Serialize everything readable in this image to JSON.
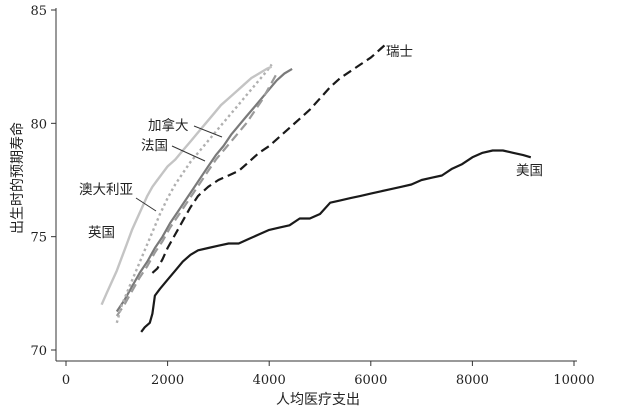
{
  "chart_data": {
    "type": "line",
    "title": "",
    "xlabel": "人均医疗支出",
    "ylabel": "出生时的预期寿命",
    "xlim": [
      0,
      10000
    ],
    "ylim": [
      70,
      85
    ],
    "xticks": [
      0,
      2000,
      4000,
      6000,
      8000,
      10000
    ],
    "yticks": [
      70,
      75,
      80,
      85
    ],
    "xtick_labels": [
      "0",
      "2000",
      "4000",
      "6000",
      "8000",
      "10000"
    ],
    "ytick_labels": [
      "70",
      "75",
      "80",
      "85"
    ],
    "grid": false,
    "legend": "none",
    "series": [
      {
        "name": "美国",
        "color": "#1a1a1a",
        "dash": "solid",
        "x": [
          1480,
          1550,
          1650,
          1700,
          1750,
          1850,
          2000,
          2150,
          2300,
          2450,
          2600,
          2800,
          3000,
          3200,
          3400,
          3600,
          3800,
          4000,
          4200,
          4400,
          4600,
          4800,
          5000,
          5200,
          5400,
          5600,
          5800,
          6000,
          6200,
          6400,
          6600,
          6800,
          7000,
          7200,
          7400,
          7600,
          7800,
          8000,
          8200,
          8400,
          8600,
          8800,
          9000,
          9150
        ],
        "y": [
          70.8,
          71.0,
          71.2,
          71.6,
          72.4,
          72.7,
          73.1,
          73.5,
          73.9,
          74.2,
          74.4,
          74.5,
          74.6,
          74.7,
          74.7,
          74.9,
          75.1,
          75.3,
          75.4,
          75.5,
          75.8,
          75.8,
          76.0,
          76.5,
          76.6,
          76.7,
          76.8,
          76.9,
          77.0,
          77.1,
          77.2,
          77.3,
          77.5,
          77.6,
          77.7,
          78.0,
          78.2,
          78.5,
          78.7,
          78.8,
          78.8,
          78.7,
          78.6,
          78.5
        ]
      },
      {
        "name": "瑞士",
        "color": "#1a1a1a",
        "dash": "long",
        "x": [
          1700,
          1800,
          1900,
          2000,
          2150,
          2300,
          2450,
          2600,
          2800,
          3000,
          3200,
          3400,
          3600,
          3800,
          4000,
          4200,
          4400,
          4600,
          4800,
          5000,
          5200,
          5400,
          5600,
          5800,
          6000,
          6100,
          6200,
          6300
        ],
        "y": [
          73.4,
          73.6,
          74.0,
          74.5,
          75.1,
          75.7,
          76.3,
          76.8,
          77.2,
          77.5,
          77.7,
          77.9,
          78.3,
          78.7,
          79.0,
          79.4,
          79.8,
          80.2,
          80.6,
          81.1,
          81.6,
          82.0,
          82.3,
          82.6,
          82.9,
          83.1,
          83.3,
          83.5
        ]
      },
      {
        "name": "加拿大",
        "color": "#7a7a7a",
        "dash": "solid",
        "x": [
          1000,
          1150,
          1300,
          1450,
          1600,
          1750,
          1900,
          2050,
          2200,
          2350,
          2500,
          2650,
          2800,
          2950,
          3100,
          3250,
          3400,
          3550,
          3700,
          3850,
          4000,
          4150,
          4300,
          4450
        ],
        "y": [
          71.7,
          72.2,
          72.8,
          73.4,
          73.9,
          74.5,
          75.0,
          75.6,
          76.1,
          76.6,
          77.1,
          77.6,
          78.1,
          78.6,
          79.0,
          79.5,
          79.9,
          80.3,
          80.7,
          81.1,
          81.5,
          81.9,
          82.2,
          82.4
        ]
      },
      {
        "name": "法国",
        "color": "#9a9a9a",
        "dash": "long",
        "x": [
          1000,
          1150,
          1300,
          1450,
          1600,
          1750,
          1900,
          2050,
          2200,
          2350,
          2500,
          2650,
          2800,
          2950,
          3100,
          3250,
          3400,
          3550,
          3700,
          3850,
          4000,
          4150
        ],
        "y": [
          71.5,
          72.0,
          72.6,
          73.2,
          73.7,
          74.3,
          74.8,
          75.4,
          75.9,
          76.4,
          76.9,
          77.4,
          77.9,
          78.4,
          78.8,
          79.2,
          79.6,
          80.0,
          80.5,
          81.0,
          81.6,
          82.2
        ]
      },
      {
        "name": "澳大利亚",
        "color": "#b0b0b0",
        "dash": "dot",
        "x": [
          1000,
          1100,
          1250,
          1400,
          1550,
          1700,
          1850,
          2000,
          2150,
          2300,
          2450,
          2600,
          2750,
          2900,
          3050,
          3200,
          3350,
          3500,
          3650,
          3800,
          3950,
          4050
        ],
        "y": [
          71.2,
          72.0,
          72.8,
          73.6,
          74.4,
          75.2,
          76.0,
          76.7,
          77.3,
          77.8,
          78.3,
          78.7,
          79.1,
          79.5,
          79.9,
          80.3,
          80.7,
          81.1,
          81.5,
          81.9,
          82.3,
          82.6
        ]
      },
      {
        "name": "英国",
        "color": "#c4c4c4",
        "dash": "solid",
        "x": [
          700,
          800,
          900,
          1000,
          1100,
          1200,
          1300,
          1400,
          1500,
          1600,
          1700,
          1800,
          1900,
          2000,
          2150,
          2300,
          2450,
          2600,
          2750,
          2900,
          3050,
          3200,
          3350,
          3500,
          3650,
          3800,
          3950,
          4050
        ],
        "y": [
          72.0,
          72.5,
          73.0,
          73.5,
          74.1,
          74.7,
          75.3,
          75.8,
          76.3,
          76.8,
          77.2,
          77.5,
          77.8,
          78.1,
          78.4,
          78.8,
          79.2,
          79.6,
          80.0,
          80.4,
          80.8,
          81.1,
          81.4,
          81.7,
          82.0,
          82.2,
          82.4,
          82.5
        ]
      }
    ],
    "annotations": [
      {
        "text": "瑞士",
        "series": "瑞士"
      },
      {
        "text": "美国",
        "series": "美国"
      },
      {
        "text": "加拿大",
        "series": "加拿大"
      },
      {
        "text": "法国",
        "series": "法国"
      },
      {
        "text": "澳大利亚",
        "series": "澳大利亚"
      },
      {
        "text": "英国",
        "series": "英国"
      }
    ]
  }
}
